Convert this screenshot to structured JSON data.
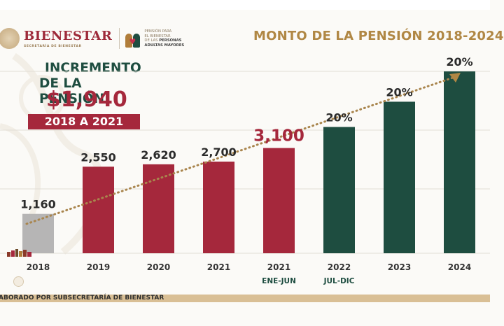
{
  "header": {
    "brand_name": "BIENESTAR",
    "brand_subtitle": "SECRETARÍA DE BIENESTAR",
    "program_lines": [
      "PENSIÓN PARA",
      "EL BIENESTAR",
      "DE LAS",
      "PERSONAS",
      "ADULTAS MAYORES"
    ],
    "seal_icon": "national-seal-icon",
    "program_icon": "elderly-couple-heart-icon"
  },
  "increment_box": {
    "title_line1": "INCREMENTO",
    "title_line2": "DE LA PENSIÓN",
    "amount": "$1,940",
    "period": "2018 A 2021"
  },
  "footer": {
    "text": "ABORADO POR SUBSECRETARÍA DE BIENESTAR"
  },
  "colors": {
    "gray_bar": "#b6b5b5",
    "red_bar": "#a5283c",
    "green_bar": "#1e4d40",
    "gold": "#b08744",
    "trend": "#a9854d",
    "label_dark": "#2b2b2b",
    "highlight_label": "#a5283c"
  },
  "chart_data": {
    "type": "bar",
    "title": "MONTO DE LA PENSIÓN 2018-2024",
    "xlabel": "",
    "ylabel": "",
    "grid": true,
    "legend": "none",
    "categories": [
      "2018",
      "2019",
      "2020",
      "2021",
      "2021",
      "2022",
      "2023",
      "2024"
    ],
    "sublabels": [
      "",
      "",
      "",
      "",
      "ENE-JUN",
      "JUL-DIC",
      "",
      ""
    ],
    "values": [
      1160,
      2550,
      2620,
      2700,
      3100,
      null,
      null,
      null
    ],
    "growth_pct": [
      null,
      null,
      null,
      null,
      null,
      20,
      20,
      20
    ],
    "data_labels": [
      "1,160",
      "2,550",
      "2,620",
      "2,700",
      "3,100",
      "20%",
      "20%",
      "20%"
    ],
    "bar_colors": [
      "gray",
      "red",
      "red",
      "red",
      "red",
      "green",
      "green",
      "green"
    ],
    "highlight_index": 4,
    "trend_line": "dotted arrow from 2018 to 2024",
    "ylim": [
      0,
      5400
    ]
  }
}
